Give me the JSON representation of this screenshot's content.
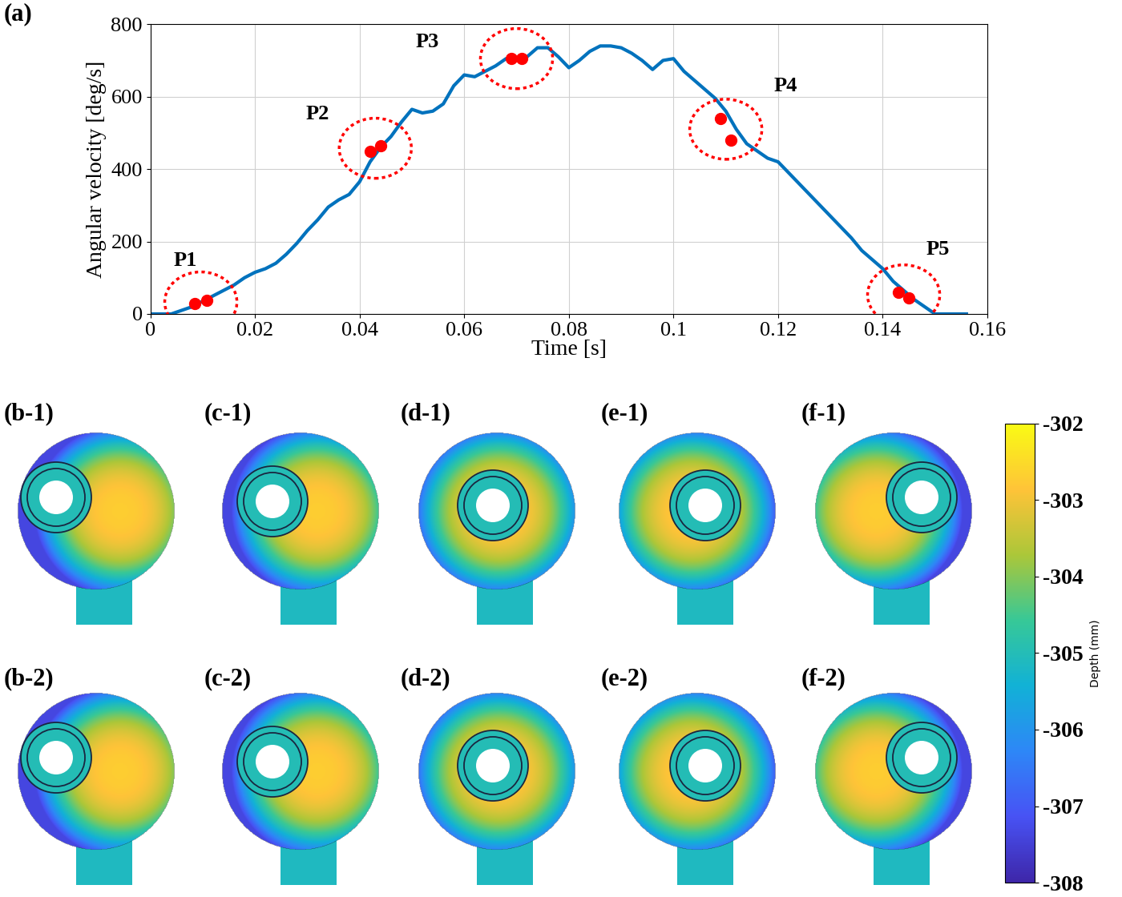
{
  "chart_data": [
    {
      "type": "line",
      "panel": "(a)",
      "x_label": "Time [s]",
      "y_label": "Angular velocity [deg/s]",
      "x": [
        0,
        0.004,
        0.006,
        0.008,
        0.01,
        0.012,
        0.014,
        0.016,
        0.018,
        0.02,
        0.022,
        0.024,
        0.026,
        0.028,
        0.03,
        0.032,
        0.034,
        0.036,
        0.038,
        0.04,
        0.042,
        0.044,
        0.046,
        0.048,
        0.05,
        0.052,
        0.054,
        0.056,
        0.058,
        0.06,
        0.062,
        0.064,
        0.066,
        0.068,
        0.07,
        0.072,
        0.074,
        0.076,
        0.078,
        0.08,
        0.082,
        0.084,
        0.086,
        0.088,
        0.09,
        0.092,
        0.094,
        0.096,
        0.098,
        0.1,
        0.102,
        0.104,
        0.106,
        0.108,
        0.11,
        0.112,
        0.114,
        0.116,
        0.118,
        0.12,
        0.122,
        0.124,
        0.126,
        0.128,
        0.13,
        0.132,
        0.134,
        0.136,
        0.138,
        0.14,
        0.142,
        0.144,
        0.146,
        0.148,
        0.15,
        0.156
      ],
      "values": [
        0,
        0,
        10,
        20,
        35,
        50,
        65,
        80,
        100,
        115,
        125,
        140,
        165,
        195,
        230,
        260,
        295,
        315,
        330,
        365,
        420,
        460,
        490,
        530,
        565,
        555,
        560,
        580,
        630,
        660,
        655,
        670,
        685,
        705,
        705,
        710,
        735,
        735,
        710,
        680,
        700,
        725,
        740,
        740,
        735,
        720,
        700,
        675,
        700,
        705,
        670,
        645,
        620,
        595,
        560,
        510,
        470,
        450,
        430,
        420,
        390,
        360,
        330,
        300,
        270,
        240,
        210,
        175,
        150,
        125,
        90,
        65,
        40,
        20,
        0,
        0
      ],
      "color": "#0072BD",
      "xlim": [
        0,
        0.16
      ],
      "xticks": [
        0,
        0.02,
        0.04,
        0.06,
        0.08,
        0.1,
        0.12,
        0.14,
        0.16
      ],
      "ylim": [
        0,
        800
      ],
      "yticks": [
        0,
        200,
        400,
        600,
        800
      ],
      "grid": true,
      "highlighted": [
        {
          "name": "P1",
          "x": [
            0.0085,
            0.0108
          ],
          "values": [
            28,
            38
          ],
          "color": "#FF0000",
          "marker": "circle"
        },
        {
          "name": "P2",
          "x": [
            0.042,
            0.044
          ],
          "values": [
            450,
            465
          ],
          "color": "#FF0000",
          "marker": "circle"
        },
        {
          "name": "P3",
          "x": [
            0.069,
            0.071
          ],
          "values": [
            705,
            705
          ],
          "color": "#FF0000",
          "marker": "circle"
        },
        {
          "name": "P4",
          "x": [
            0.109,
            0.111
          ],
          "values": [
            540,
            480
          ],
          "color": "#FF0000",
          "marker": "circle"
        },
        {
          "name": "P5",
          "x": [
            0.143,
            0.145
          ],
          "values": [
            60,
            45
          ],
          "color": "#FF0000",
          "marker": "circle"
        }
      ]
    },
    {
      "type": "image",
      "panel_labels": [
        [
          "(b-1)",
          "(c-1)",
          "(d-1)",
          "(e-1)",
          "(f-1)"
        ],
        [
          "(b-2)",
          "(c-2)",
          "(d-2)",
          "(e-2)",
          "(f-2)"
        ]
      ],
      "colorbar": {
        "label": "Depth (mm)",
        "range": [
          -308,
          -302
        ],
        "ticks": [
          -302,
          -303,
          -304,
          -305,
          -306,
          -307,
          -308
        ]
      }
    }
  ]
}
